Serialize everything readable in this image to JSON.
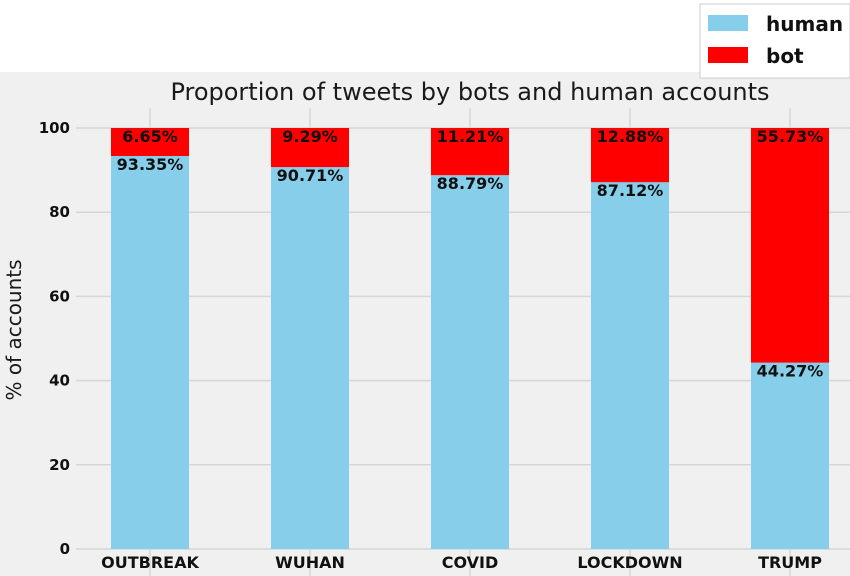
{
  "chart_data": {
    "type": "bar",
    "stacked": true,
    "title": "Proportion of tweets by bots and human accounts",
    "xlabel": "",
    "ylabel": "% of accounts",
    "categories": [
      "OUTBREAK",
      "WUHAN",
      "COVID",
      "LOCKDOWN",
      "TRUMP"
    ],
    "series": [
      {
        "name": "human",
        "color": "#87ceeb",
        "values": [
          93.35,
          90.71,
          88.79,
          87.12,
          44.27
        ],
        "labels": [
          "93.35%",
          "90.71%",
          "88.79%",
          "87.12%",
          "44.27%"
        ]
      },
      {
        "name": "bot",
        "color": "#ff0000",
        "values": [
          6.65,
          9.29,
          11.21,
          12.88,
          55.73
        ],
        "labels": [
          "6.65%",
          "9.29%",
          "11.21%",
          "12.88%",
          "55.73%"
        ]
      }
    ],
    "ylim": [
      0,
      100
    ],
    "yticks": [
      0,
      20,
      40,
      60,
      80,
      100
    ],
    "grid": true,
    "legend_position": "top-right",
    "background": "#f0f0f0",
    "grid_color": "#d6d6d6"
  }
}
